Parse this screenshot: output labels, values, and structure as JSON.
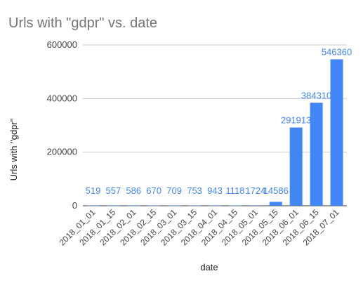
{
  "chart_data": {
    "type": "bar",
    "title": "Urls with \"gdpr\" vs. date",
    "xlabel": "date",
    "ylabel": "Urls with \"gdpr\"",
    "categories": [
      "2018_01_01",
      "2018_01_15",
      "2018_02_01",
      "2018_02_15",
      "2018_03_01",
      "2018_03_15",
      "2018_04_01",
      "2018_04_15",
      "2018_05_01",
      "2018_05_15",
      "2018_06_01",
      "2018_06_15",
      "2018_07_01"
    ],
    "values": [
      519,
      557,
      586,
      670,
      709,
      753,
      943,
      1118,
      1724,
      14586,
      291913,
      384310,
      546360
    ],
    "data_labels": [
      "519",
      "557",
      "586",
      "670",
      "709",
      "753",
      "943",
      "1118",
      "1724",
      "14586",
      "291913",
      "384310",
      "546360"
    ],
    "yticks": [
      0,
      200000,
      400000,
      600000
    ],
    "ytick_labels": [
      "0",
      "200000",
      "400000",
      "600000"
    ],
    "ylim": [
      0,
      600000
    ],
    "grid": true,
    "legend": "none",
    "bar_color": "#4285f4",
    "label_color": "#4285f4"
  }
}
